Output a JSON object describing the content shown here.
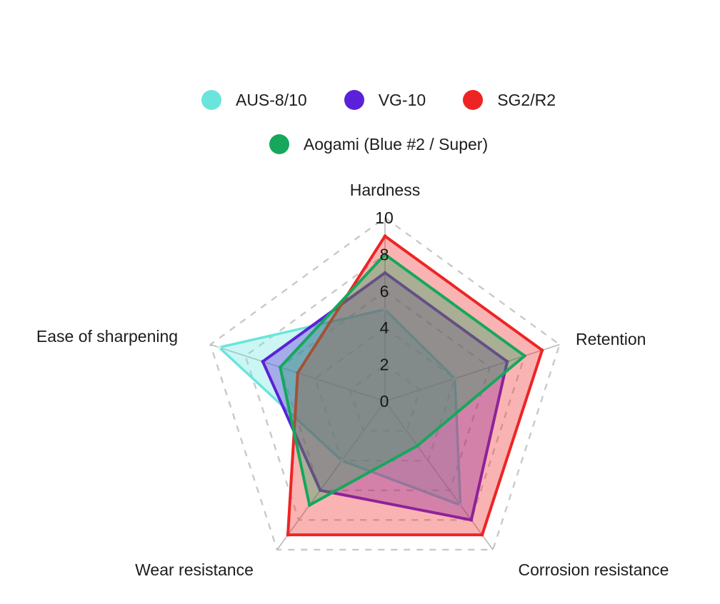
{
  "chart_data": {
    "type": "radar",
    "categories": [
      "Hardness",
      "Retention",
      "Corrosion resistance",
      "Wear resistance",
      "Ease of sharpening"
    ],
    "series": [
      {
        "name": "AUS-8/10",
        "color": "#69e5dc",
        "values": [
          5,
          4,
          7,
          4,
          9.5
        ]
      },
      {
        "name": "VG-10",
        "color": "#5b21d8",
        "values": [
          7,
          7,
          8,
          6,
          7
        ]
      },
      {
        "name": "SG2/R2",
        "color": "#ee2424",
        "values": [
          9,
          9,
          9,
          9,
          5
        ]
      },
      {
        "name": "Aogami (Blue #2 / Super)",
        "color": "#16a75c",
        "values": [
          8,
          8,
          3,
          7,
          6
        ]
      }
    ],
    "r_axis": {
      "min": 0,
      "max": 10,
      "tick_step": 2,
      "tick_labels": [
        "0",
        "2",
        "4",
        "6",
        "8",
        "10"
      ]
    },
    "grid": {
      "rings": [
        2,
        4,
        6,
        8,
        10
      ],
      "ring_style": "dashed",
      "ring_color": "#c9c9c9",
      "spoke_color": "#b8b8b8",
      "spoke_style": "solid"
    },
    "fill_opacity": 0.35,
    "legend_position": "top",
    "text_color": "#1d1d1d"
  }
}
